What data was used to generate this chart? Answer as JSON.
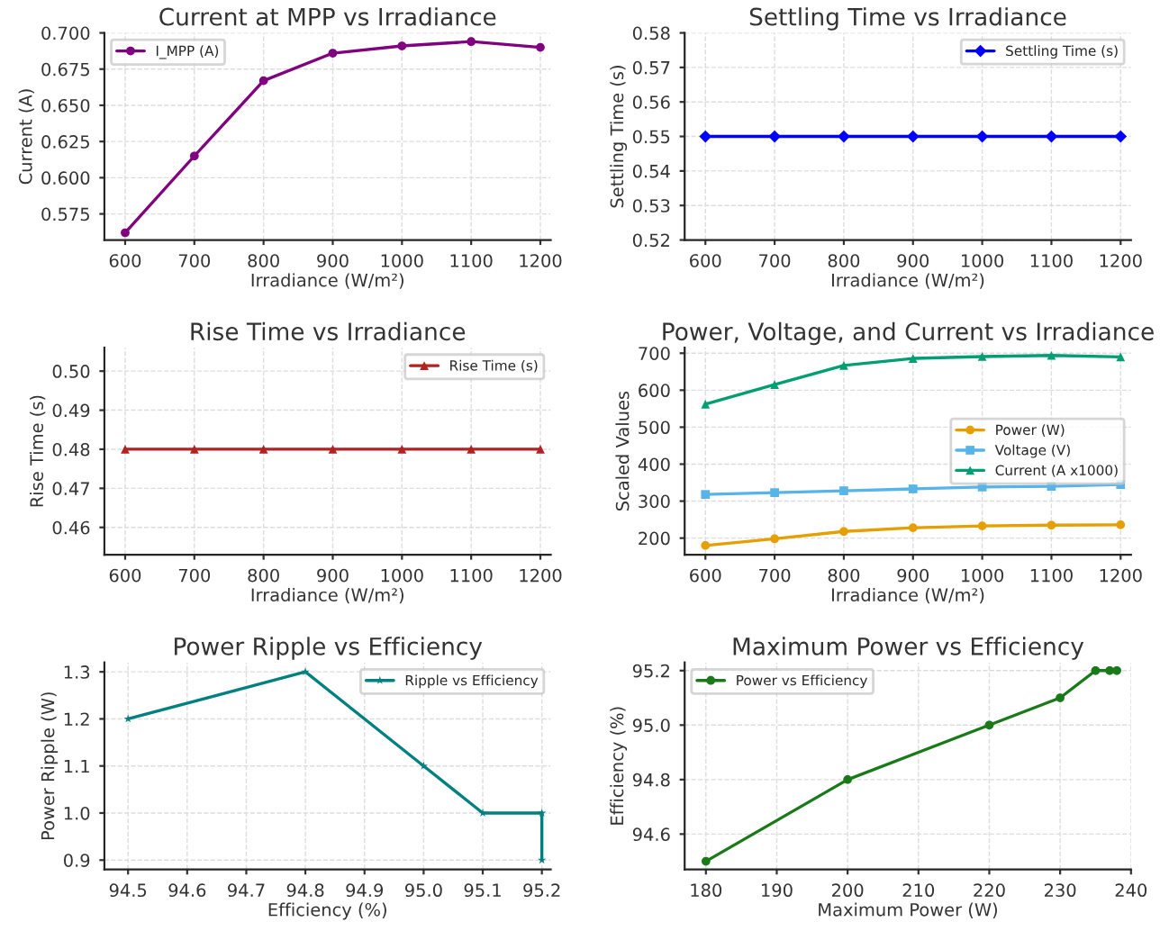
{
  "chart_data": [
    {
      "type": "line",
      "title": "Current at MPP vs Irradiance",
      "xlabel": "Irradiance (W/m²)",
      "ylabel": "Current (A)",
      "x": [
        600,
        700,
        800,
        900,
        1000,
        1100,
        1200
      ],
      "xlim": [
        570,
        1215
      ],
      "xticks": [
        600,
        700,
        800,
        900,
        1000,
        1100,
        1200
      ],
      "ylim": [
        0.557,
        0.7
      ],
      "yticks": [
        0.575,
        {
          "value": 0.6,
          "label": "0.600"
        },
        0.625,
        {
          "value": 0.65,
          "label": "0.650"
        },
        0.675,
        {
          "value": 0.7,
          "label": "0.700"
        }
      ],
      "grid": true,
      "legend": "top left",
      "marker": "circle",
      "line_style": "solid",
      "series": [
        {
          "name": "I_MPP (A)",
          "color": "#800080",
          "values": [
            0.562,
            0.615,
            0.667,
            0.686,
            0.691,
            0.694,
            0.69
          ]
        }
      ]
    },
    {
      "type": "line",
      "title": "Settling Time vs Irradiance",
      "xlabel": "Irradiance (W/m²)",
      "ylabel": "Settling Time (s)",
      "x": [
        600,
        700,
        800,
        900,
        1000,
        1100,
        1200
      ],
      "xlim": [
        570,
        1215
      ],
      "xticks": [
        600,
        700,
        800,
        900,
        1000,
        1100,
        1200
      ],
      "ylim": [
        0.52,
        0.58
      ],
      "yticks": [
        0.52,
        0.53,
        0.54,
        0.55,
        0.56,
        0.57,
        0.58
      ],
      "grid": true,
      "legend": "top right",
      "marker": "diamond",
      "line_style": "solid",
      "series": [
        {
          "name": "Settling Time (s)",
          "color": "#0000ff",
          "values": [
            0.55,
            0.55,
            0.55,
            0.55,
            0.55,
            0.55,
            0.55
          ]
        }
      ]
    },
    {
      "type": "line",
      "title": "Rise Time vs Irradiance",
      "xlabel": "Irradiance (W/m²)",
      "ylabel": "Rise Time (s)",
      "x": [
        600,
        700,
        800,
        900,
        1000,
        1100,
        1200
      ],
      "xlim": [
        570,
        1215
      ],
      "xticks": [
        600,
        700,
        800,
        900,
        1000,
        1100,
        1200
      ],
      "ylim": [
        0.453,
        0.506
      ],
      "yticks": [
        0.46,
        0.47,
        0.48,
        0.49,
        {
          "value": 0.5,
          "label": "0.50"
        }
      ],
      "grid": true,
      "legend": "top right",
      "marker": "triangle",
      "line_style": "solid",
      "series": [
        {
          "name": "Rise Time (s)",
          "color": "#b22222",
          "values": [
            0.48,
            0.48,
            0.48,
            0.48,
            0.48,
            0.48,
            0.48
          ]
        }
      ]
    },
    {
      "type": "line",
      "title": "Power, Voltage, and Current vs Irradiance",
      "xlabel": "Irradiance (W/m²)",
      "ylabel": "Scaled Values",
      "x": [
        600,
        700,
        800,
        900,
        1000,
        1100,
        1200
      ],
      "xlim": [
        570,
        1215
      ],
      "xticks": [
        600,
        700,
        800,
        900,
        1000,
        1100,
        1200
      ],
      "ylim": [
        155,
        715
      ],
      "yticks": [
        200,
        300,
        400,
        500,
        600,
        700
      ],
      "grid": true,
      "legend": "right",
      "line_style": "solid",
      "series": [
        {
          "name": "Power (W)",
          "color": "#e69f00",
          "marker": "circle",
          "values": [
            180,
            198,
            218,
            228,
            233,
            235,
            236
          ]
        },
        {
          "name": "Voltage (V)",
          "color": "#56b4e9",
          "marker": "square",
          "values": [
            318,
            323,
            328,
            333,
            338,
            340,
            345
          ]
        },
        {
          "name": "Current (A x1000)",
          "color": "#009e73",
          "marker": "triangle",
          "values": [
            562,
            615,
            667,
            686,
            691,
            694,
            690
          ]
        }
      ]
    },
    {
      "type": "line",
      "title": "Power Ripple vs Efficiency",
      "xlabel": "Efficiency (%)",
      "ylabel": "Power Ripple (W)",
      "xlim": [
        94.46,
        95.215
      ],
      "xticks": [
        94.5,
        94.6,
        94.7,
        94.8,
        94.9,
        {
          "value": 95,
          "label": "95.0"
        },
        95.1,
        95.2
      ],
      "ylim": [
        0.88,
        1.32
      ],
      "yticks": [
        0.9,
        {
          "value": 1,
          "label": "1.0"
        },
        1.1,
        1.2,
        1.3
      ],
      "grid": true,
      "legend": "top right",
      "marker": "star",
      "line_style": "solid",
      "series": [
        {
          "name": "Ripple vs Efficiency",
          "color": "#008080",
          "x": [
            94.5,
            94.8,
            95.0,
            95.1,
            95.2,
            95.2
          ],
          "values": [
            1.2,
            1.3,
            1.1,
            1.0,
            1.0,
            0.9
          ]
        }
      ]
    },
    {
      "type": "line",
      "title": "Maximum Power vs Efficiency",
      "xlabel": "Maximum Power (W)",
      "ylabel": "Efficiency (%)",
      "xlim": [
        177,
        240
      ],
      "xticks": [
        180,
        190,
        200,
        210,
        220,
        230,
        240
      ],
      "ylim": [
        94.47,
        95.23
      ],
      "yticks": [
        94.6,
        94.8,
        {
          "value": 95,
          "label": "95.0"
        },
        95.2
      ],
      "grid": true,
      "legend": "top left",
      "marker": "circle",
      "line_style": "solid",
      "series": [
        {
          "name": "Power vs Efficiency",
          "color": "#1a7a1a",
          "x": [
            180,
            200,
            220,
            230,
            235,
            237,
            238
          ],
          "values": [
            94.5,
            94.8,
            95.0,
            95.1,
            95.2,
            95.2,
            95.2
          ]
        }
      ]
    }
  ]
}
